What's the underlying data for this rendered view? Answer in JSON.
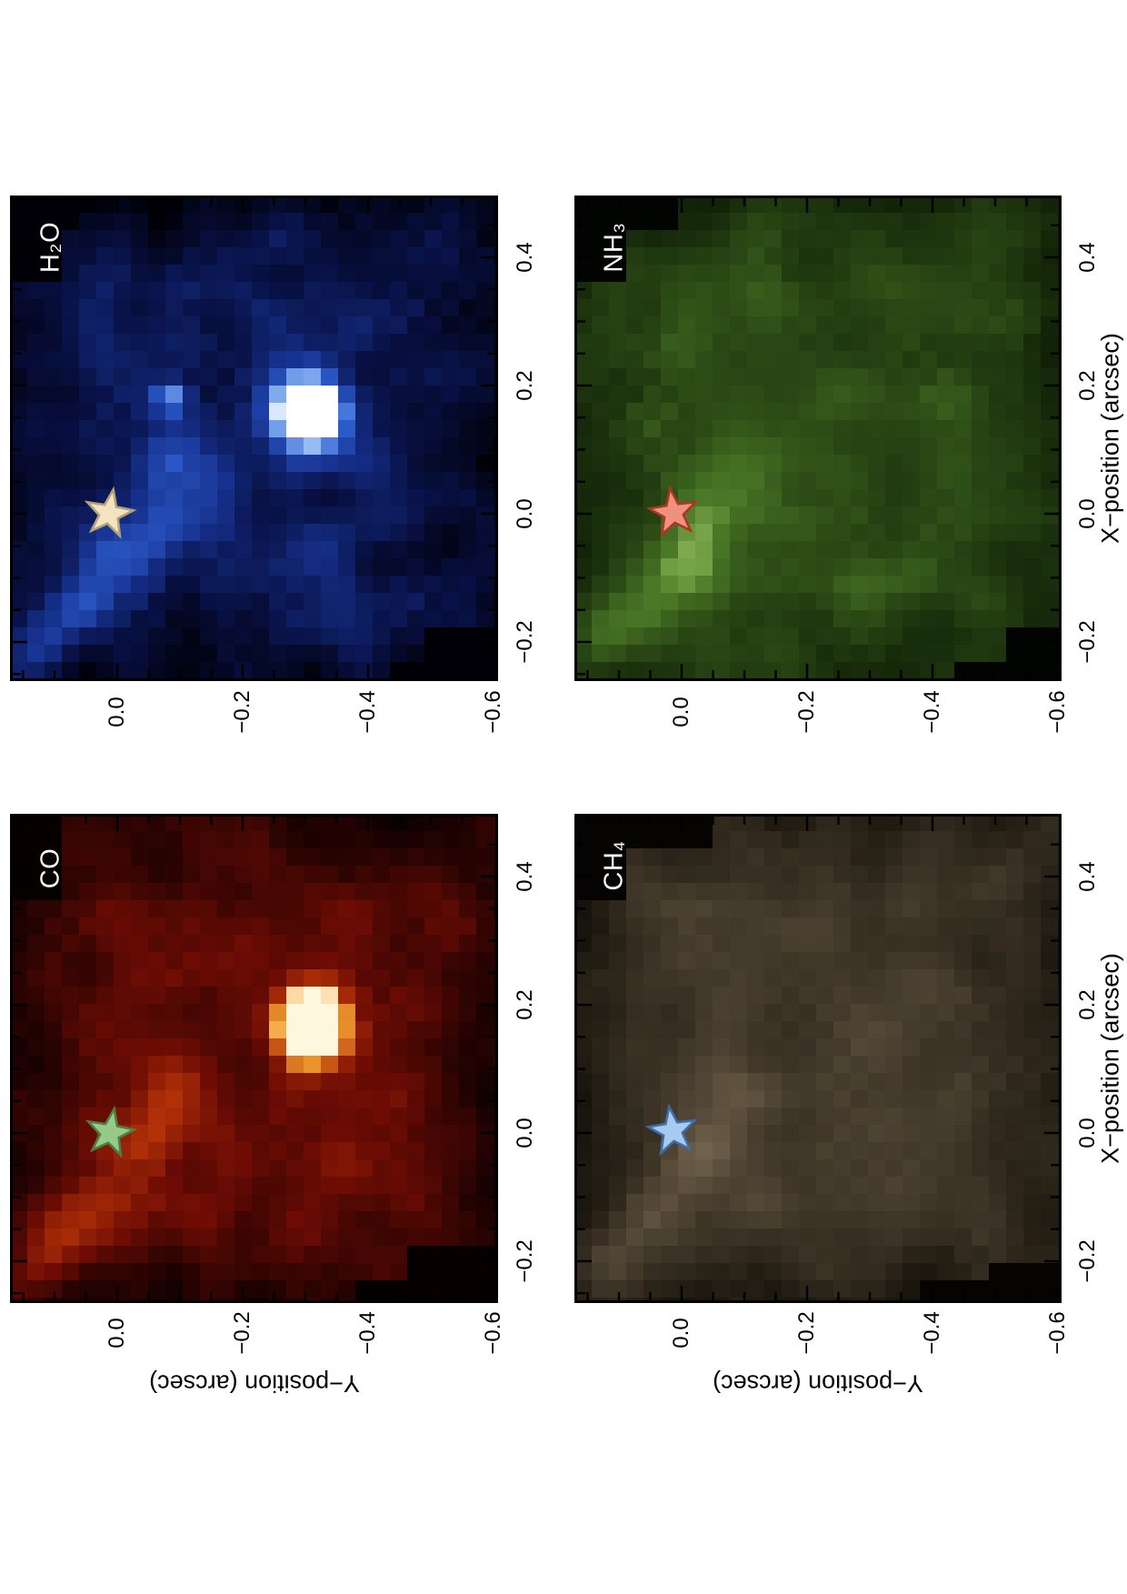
{
  "figure": {
    "orientation_note": "landscape figure rotated 90deg counter-clockwise on portrait page",
    "background": "#ffffff",
    "frame_color": "#000000"
  },
  "panels": [
    {
      "id": "H2O",
      "label": "H₂O",
      "position_on_page": "top-left",
      "star_fill": "#f4e3c0",
      "star_stroke": "#b3a278",
      "colormap": [
        "#000006",
        "#081042",
        "#16318e",
        "#2f62d4",
        "#9dc2f6",
        "#ffffff"
      ],
      "companion_blob": true
    },
    {
      "id": "NH3",
      "label": "NH₃",
      "position_on_page": "top-right",
      "star_fill": "#f0907e",
      "star_stroke": "#a93722",
      "colormap": [
        "#010400",
        "#142609",
        "#2b4a15",
        "#4a7726",
        "#8bb757",
        "#eaf8c4"
      ],
      "companion_blob": false
    },
    {
      "id": "CO",
      "label": "CO",
      "position_on_page": "bottom-left",
      "star_fill": "#97c989",
      "star_stroke": "#4c7f41",
      "colormap": [
        "#060000",
        "#2f0402",
        "#6d0c04",
        "#b23108",
        "#f2a132",
        "#fff7dd"
      ],
      "companion_blob": true
    },
    {
      "id": "CH4",
      "label": "CH₄",
      "position_on_page": "bottom-right",
      "star_fill": "#a8caee",
      "star_stroke": "#3c6fa9",
      "colormap": [
        "#050402",
        "#251f15",
        "#463c2d",
        "#6b5d48",
        "#a5947b",
        "#e9ddc9"
      ],
      "companion_blob": false
    }
  ],
  "axes": {
    "x": {
      "title": "X−position (arcsec)",
      "tick_labels": [
        "0.4",
        "0.2",
        "0.0",
        "−0.2"
      ]
    },
    "y": {
      "title": "Y−position (arcsec)",
      "tick_labels": [
        "0.0",
        "−0.2",
        "−0.4",
        "−0.6"
      ]
    }
  },
  "chart_data": {
    "type": "heatmap",
    "subtype": "2x2 grid of astronomical molecular emission maps (IFU spectral maps), rendered rotated 90° CCW on the page",
    "xlabel": "X−position (arcsec)",
    "ylabel": "Y−position (arcsec)",
    "x_ticks": [
      0.4,
      0.2,
      0.0,
      -0.2
    ],
    "y_ticks": [
      0.0,
      -0.2,
      -0.4,
      -0.6
    ],
    "x_range_approx": [
      -0.26,
      0.46
    ],
    "y_range_approx": [
      -0.61,
      0.17
    ],
    "grid": false,
    "legend": "none",
    "panels": [
      {
        "molecule": "H₂O",
        "page_position": "top-left",
        "colormap": "black to dark blue to white",
        "central_star_marker": {
          "x_arcsec": 0.0,
          "y_arcsec": 0.0,
          "color": "cream"
        },
        "companion_detected": true,
        "companion_position": {
          "x_arcsec": 0.2,
          "y_arcsec": -0.3
        },
        "other_features": "faint light-blue arc left of/below the star marker; black masked corners top-left and bottom-right"
      },
      {
        "molecule": "NH₃",
        "page_position": "top-right",
        "colormap": "black to dark green",
        "central_star_marker": {
          "x_arcsec": 0.0,
          "y_arcsec": 0.0,
          "color": "salmon red"
        },
        "companion_detected": false,
        "other_features": "mottled faint green emission only; black masked corners"
      },
      {
        "molecule": "CO",
        "page_position": "bottom-left",
        "colormap": "black to dark red to orange-white",
        "central_star_marker": {
          "x_arcsec": 0.0,
          "y_arcsec": 0.0,
          "color": "light green"
        },
        "companion_detected": true,
        "companion_position": {
          "x_arcsec": 0.2,
          "y_arcsec": -0.3
        },
        "other_features": "bright orange point source; diffuse red emission; black masked corners"
      },
      {
        "molecule": "CH₄",
        "page_position": "bottom-right",
        "colormap": "black to brown/tan",
        "central_star_marker": {
          "x_arcsec": 0.0,
          "y_arcsec": 0.0,
          "color": "light blue"
        },
        "companion_detected": false,
        "other_features": "mottled faint brown emission only; black masked corners"
      }
    ]
  }
}
